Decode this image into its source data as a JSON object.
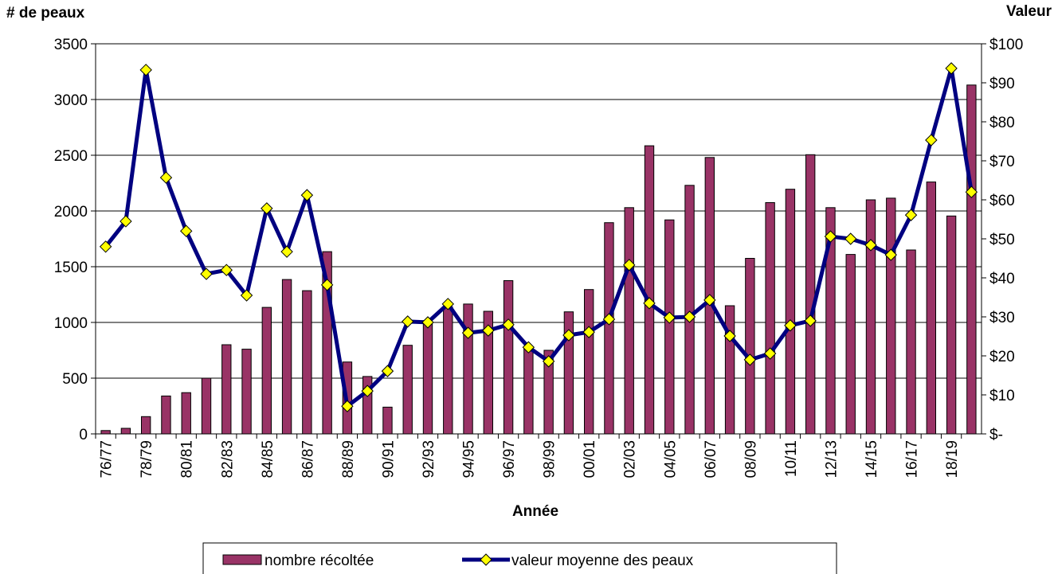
{
  "chart_data": {
    "type": "bar",
    "title": "# de peaux",
    "y2_title": "Valeur",
    "x_title": "Année",
    "categories": [
      "76/77",
      null,
      "78/79",
      null,
      "80/81",
      null,
      "82/83",
      null,
      "84/85",
      null,
      "86/87",
      null,
      "88/89",
      null,
      "90/91",
      null,
      "92/93",
      null,
      "94/95",
      null,
      "96/97",
      null,
      "98/99",
      null,
      "00/01",
      null,
      "02/03",
      null,
      "04/05",
      null,
      "06/07",
      null,
      "08/09",
      null,
      "10/11",
      null,
      "12/13",
      null,
      "14/15",
      null,
      "16/17",
      null,
      "18/19",
      null
    ],
    "series": [
      {
        "name": "nombre récoltée",
        "type": "bar",
        "color": "#993366",
        "values": [
          30,
          50,
          155,
          340,
          370,
          500,
          800,
          760,
          1135,
          1385,
          1285,
          1635,
          645,
          515,
          240,
          795,
          1000,
          1140,
          1165,
          1100,
          1375,
          770,
          750,
          1095,
          1295,
          1895,
          2030,
          2585,
          1920,
          2230,
          2480,
          1150,
          1575,
          2075,
          2195,
          2505,
          2030,
          1610,
          2100,
          2115,
          1650,
          2260,
          1955,
          3130
        ]
      },
      {
        "name": "valeur moyenne des peaux",
        "type": "line",
        "axis": "y2",
        "color": "#000080",
        "marker_color": "#ffff00",
        "values": [
          48,
          54.5,
          93.3,
          65.7,
          52,
          41,
          42,
          35.5,
          57.8,
          46.7,
          61.2,
          38.2,
          7.1,
          11,
          16.1,
          28.8,
          28.6,
          33.3,
          25.9,
          26.5,
          28,
          22.2,
          18.6,
          25.3,
          26.1,
          29.4,
          43.3,
          33.5,
          29.8,
          30,
          34.3,
          25.1,
          19,
          20.6,
          27.8,
          29,
          50.6,
          50,
          48.4,
          45.9,
          56.1,
          75.3,
          93.7,
          62
        ]
      }
    ],
    "ylim": [
      0,
      3500
    ],
    "yticks": [
      0,
      500,
      1000,
      1500,
      2000,
      2500,
      3000,
      3500
    ],
    "y2lim": [
      0,
      100
    ],
    "y2ticks": [
      {
        "value": 0,
        "label": "$-"
      },
      {
        "value": 10,
        "label": "$10"
      },
      {
        "value": 20,
        "label": "$20"
      },
      {
        "value": 30,
        "label": "$30"
      },
      {
        "value": 40,
        "label": "$40"
      },
      {
        "value": 50,
        "label": "$50"
      },
      {
        "value": 60,
        "label": "$60"
      },
      {
        "value": 70,
        "label": "$70"
      },
      {
        "value": 80,
        "label": "$80"
      },
      {
        "value": 90,
        "label": "$90"
      },
      {
        "value": 100,
        "label": "$100"
      }
    ],
    "grid": true,
    "legend": "bottom"
  }
}
